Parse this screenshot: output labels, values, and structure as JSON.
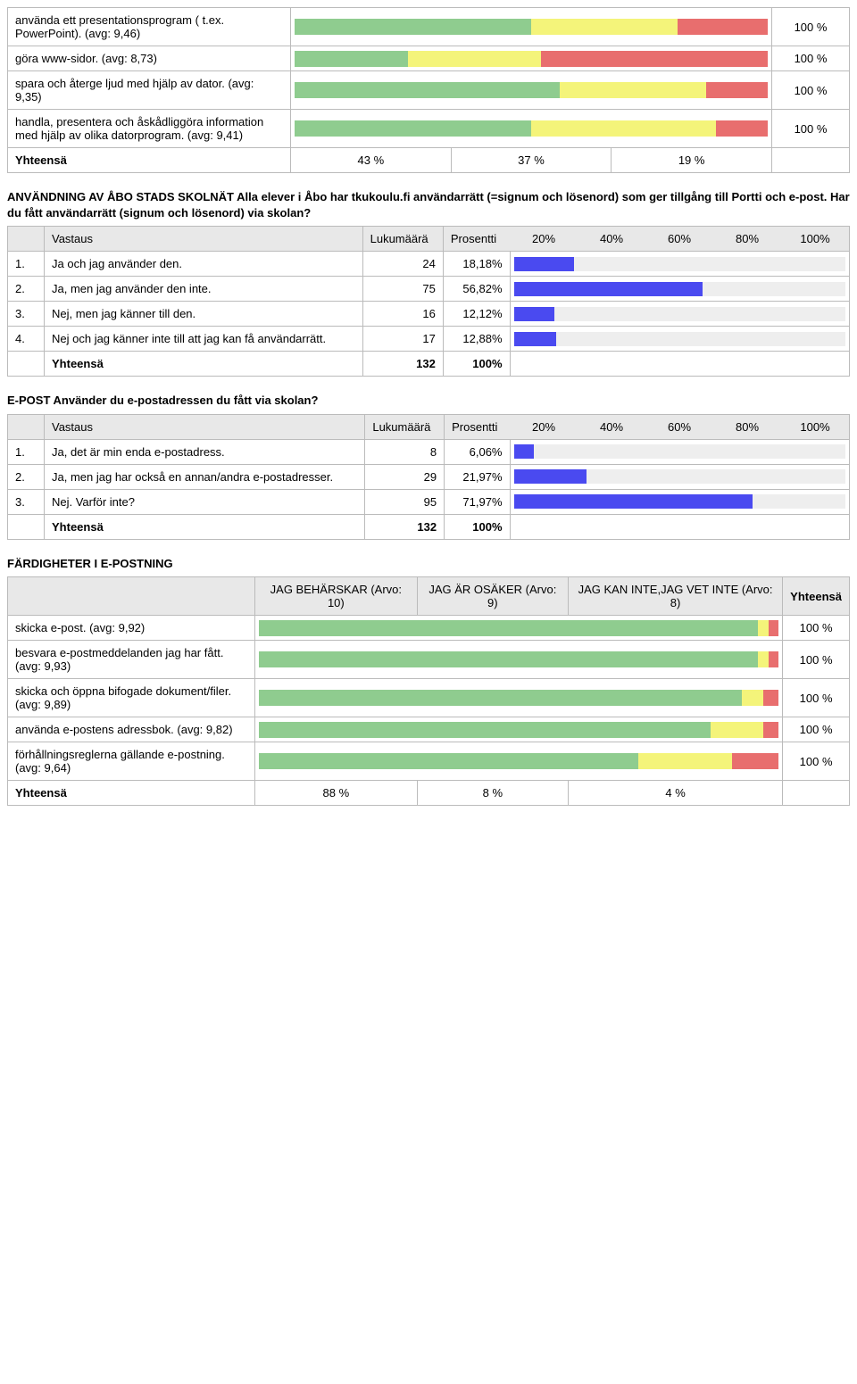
{
  "colors": {
    "seg_green": "#8fcc8f",
    "seg_yellow": "#f4f47a",
    "seg_red": "#e86e6e",
    "bar_blue": "#4a4af0",
    "bar_bg": "#eeeeee",
    "header_bg": "#e8e8e8",
    "border": "#bbbbbb"
  },
  "section1": {
    "rows": [
      {
        "label": "använda ett presentationsprogram ( t.ex. PowerPoint). (avg: 9,46)",
        "segs": [
          50,
          31,
          19
        ],
        "total": "100 %"
      },
      {
        "label": "göra www-sidor. (avg: 8,73)",
        "segs": [
          24,
          28,
          48
        ],
        "total": "100 %"
      },
      {
        "label": "spara och återge ljud med hjälp av dator. (avg: 9,35)",
        "segs": [
          56,
          31,
          13
        ],
        "total": "100 %"
      },
      {
        "label": "handla, presentera och åskådliggöra information med hjälp av olika datorprogram. (avg: 9,41)",
        "segs": [
          50,
          39,
          11
        ],
        "total": "100 %"
      }
    ],
    "total_row": {
      "label": "Yhteensä",
      "cols": [
        "43 %",
        "37 %",
        "19 %"
      ]
    }
  },
  "q1": {
    "title": "ANVÄNDNING AV ÅBO STADS SKOLNÄT Alla elever i Åbo har tkukoulu.fi användarrätt (=signum och lösenord) som ger tillgång till Portti och e-post. Har du fått användarrätt (signum och lösenord) via skolan?",
    "headers": [
      "Vastaus",
      "Lukumäärä",
      "Prosentti",
      "20%",
      "40%",
      "60%",
      "80%",
      "100%"
    ],
    "rows": [
      {
        "idx": "1.",
        "label": "Ja och jag använder den.",
        "count": 24,
        "pct": "18,18%",
        "bar": 18.18
      },
      {
        "idx": "2.",
        "label": "Ja, men jag använder den inte.",
        "count": 75,
        "pct": "56,82%",
        "bar": 56.82
      },
      {
        "idx": "3.",
        "label": "Nej, men jag känner till den.",
        "count": 16,
        "pct": "12,12%",
        "bar": 12.12
      },
      {
        "idx": "4.",
        "label": "Nej och jag känner inte till att jag kan få användarrätt.",
        "count": 17,
        "pct": "12,88%",
        "bar": 12.88
      }
    ],
    "total": {
      "label": "Yhteensä",
      "count": 132,
      "pct": "100%"
    }
  },
  "q2": {
    "title": "E-POST Använder du e-postadressen du fått via skolan?",
    "headers": [
      "Vastaus",
      "Lukumäärä",
      "Prosentti",
      "20%",
      "40%",
      "60%",
      "80%",
      "100%"
    ],
    "rows": [
      {
        "idx": "1.",
        "label": "Ja, det är min enda e-postadress.",
        "count": 8,
        "pct": "6,06%",
        "bar": 6.06
      },
      {
        "idx": "2.",
        "label": "Ja, men jag har också en annan/andra e-postadresser.",
        "count": 29,
        "pct": "21,97%",
        "bar": 21.97
      },
      {
        "idx": "3.",
        "label": "Nej. Varför inte?",
        "count": 95,
        "pct": "71,97%",
        "bar": 71.97
      }
    ],
    "total": {
      "label": "Yhteensä",
      "count": 132,
      "pct": "100%"
    }
  },
  "skills": {
    "title": "FÄRDIGHETER I E-POSTNING",
    "headers": [
      "JAG BEHÄRSKAR (Arvo: 10)",
      "JAG ÄR OSÄKER (Arvo: 9)",
      "JAG KAN INTE,JAG VET INTE (Arvo: 8)",
      "Yhteensä"
    ],
    "rows": [
      {
        "label": "skicka e-post. (avg: 9,92)",
        "segs": [
          96,
          2,
          2
        ],
        "total": "100 %"
      },
      {
        "label": "besvara e-postmeddelanden jag har fått. (avg: 9,93)",
        "segs": [
          96,
          2,
          2
        ],
        "total": "100 %"
      },
      {
        "label": "skicka och öppna bifogade dokument/filer. (avg: 9,89)",
        "segs": [
          93,
          4,
          3
        ],
        "total": "100 %"
      },
      {
        "label": "använda e-postens adressbok. (avg: 9,82)",
        "segs": [
          87,
          10,
          3
        ],
        "total": "100 %"
      },
      {
        "label": "förhållningsreglerna gällande e-postning. (avg: 9,64)",
        "segs": [
          73,
          18,
          9
        ],
        "total": "100 %"
      }
    ],
    "total_row": {
      "label": "Yhteensä",
      "cols": [
        "88 %",
        "8 %",
        "4 %"
      ]
    }
  }
}
